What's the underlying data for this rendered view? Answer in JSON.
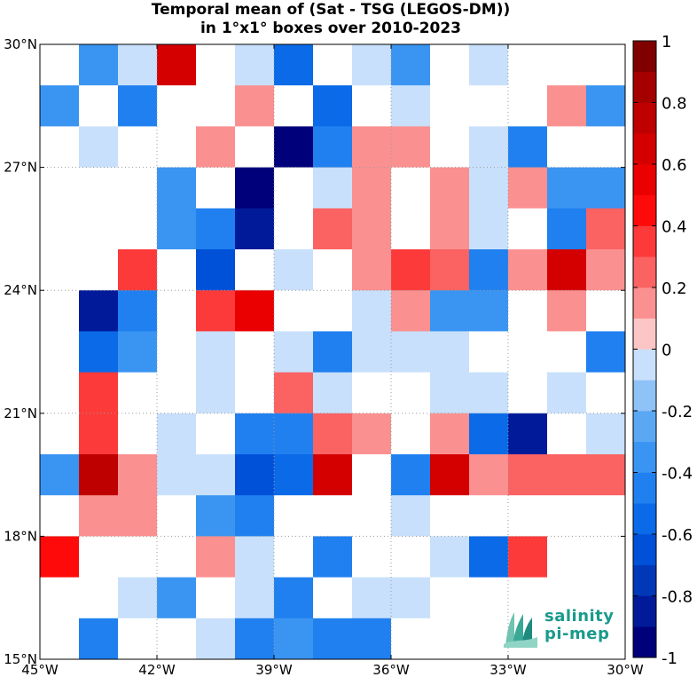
{
  "chart_data": {
    "type": "heatmap",
    "title": "Temporal mean of (Sat - TSG (LEGOS-DM))",
    "subtitle": "in 1°x1° boxes over 2010-2023",
    "x_ticks": [
      "45°W",
      "42°W",
      "39°W",
      "36°W",
      "33°W",
      "30°W"
    ],
    "y_ticks": [
      "30°N",
      "27°N",
      "24°N",
      "21°N",
      "18°N",
      "15°N"
    ],
    "lon_range": [
      -45,
      -30
    ],
    "lat_range": [
      15,
      30
    ],
    "grid": "dotted at tick positions",
    "colorbar": {
      "ticks": [
        "1",
        "0.8",
        "0.6",
        "0.4",
        "0.2",
        "0",
        "-0.2",
        "-0.4",
        "-0.6",
        "-0.8",
        "-1"
      ],
      "range": [
        -1,
        1
      ],
      "levels": 20,
      "negative_colors": [
        "#00007a",
        "#001a99",
        "#0038b8",
        "#0050d8",
        "#0a6ae8",
        "#2080f0",
        "#3a95f2",
        "#5aa8f4",
        "#8fc2f7",
        "#c8e0fb"
      ],
      "zero_color": "#ffffff",
      "positive_colors": [
        "#fcc6c6",
        "#fb9090",
        "#fb6262",
        "#fd3a3a",
        "#ff0a0a",
        "#ea0000",
        "#d40000",
        "#bf0000",
        "#a50000",
        "#800000"
      ]
    },
    "rows_from_north": [
      [
        0,
        -0.35,
        -0.1,
        0.65,
        0,
        -0.1,
        -0.55,
        0,
        -0.1,
        -0.35,
        0,
        -0.1,
        0,
        0,
        0
      ],
      [
        -0.35,
        0,
        -0.45,
        0,
        0,
        0.1,
        0,
        -0.55,
        0,
        -0.1,
        0,
        0,
        0,
        0.1,
        -0.3
      ],
      [
        0,
        -0.1,
        0,
        0,
        0.1,
        0,
        -0.95,
        -0.45,
        0.1,
        0.1,
        0,
        -0.1,
        -0.4,
        0,
        0
      ],
      [
        0,
        0,
        0,
        -0.3,
        0,
        -0.95,
        0,
        -0.1,
        0.1,
        0,
        0.1,
        -0.1,
        0.1,
        -0.3,
        -0.3
      ],
      [
        0,
        0,
        0,
        -0.3,
        -0.45,
        -0.85,
        0,
        0.25,
        0.1,
        0,
        0.1,
        -0.1,
        0,
        -0.4,
        0.25
      ],
      [
        0,
        0,
        0.35,
        0,
        -0.65,
        0,
        -0.1,
        0,
        0.1,
        0.35,
        0.25,
        -0.4,
        0.1,
        0.65,
        0.1
      ],
      [
        0,
        -0.85,
        -0.45,
        0,
        0.35,
        0.55,
        0,
        0,
        -0.1,
        0.1,
        -0.3,
        -0.3,
        0,
        0.1,
        0
      ],
      [
        0,
        -0.55,
        -0.3,
        0,
        -0.1,
        0,
        -0.1,
        -0.4,
        -0.1,
        -0.1,
        -0.1,
        0,
        0,
        0,
        -0.4
      ],
      [
        0,
        0.35,
        0,
        0,
        -0.1,
        0,
        0.25,
        -0.1,
        0,
        0,
        -0.1,
        -0.1,
        0,
        -0.1,
        0
      ],
      [
        0,
        0.35,
        0,
        -0.1,
        0,
        -0.45,
        -0.4,
        0.25,
        0.1,
        0,
        0.1,
        -0.55,
        -0.85,
        0,
        -0.1
      ],
      [
        -0.3,
        0.75,
        0.1,
        -0.1,
        -0.1,
        -0.65,
        -0.55,
        0.65,
        0,
        -0.4,
        0.65,
        0.1,
        0.25,
        0.25,
        0.25
      ],
      [
        0,
        0.1,
        0.1,
        0,
        -0.3,
        -0.4,
        0,
        0,
        0,
        -0.1,
        0,
        0,
        0,
        0,
        0
      ],
      [
        0.45,
        0,
        0,
        0,
        0.1,
        -0.1,
        0,
        -0.45,
        0,
        0,
        -0.1,
        -0.6,
        0.35,
        0,
        0
      ],
      [
        0,
        0,
        -0.1,
        -0.3,
        0,
        -0.1,
        -0.4,
        0,
        -0.1,
        -0.1,
        0,
        0,
        0,
        0,
        0
      ],
      [
        0,
        -0.45,
        0,
        0,
        -0.1,
        -0.4,
        -0.3,
        -0.45,
        -0.4,
        0,
        0,
        0,
        0,
        0,
        0
      ]
    ]
  },
  "logo": {
    "line1": "salinity",
    "line2": "pi-mep"
  }
}
